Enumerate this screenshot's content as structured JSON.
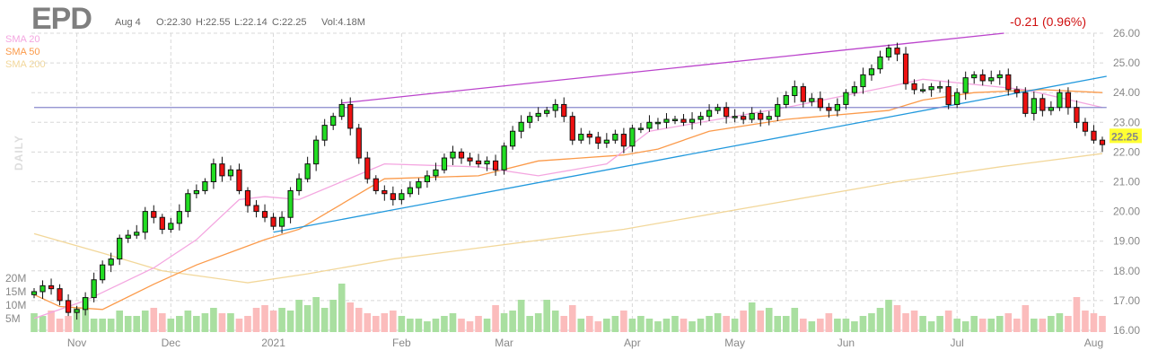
{
  "header": {
    "ticker": "EPD",
    "date": "Aug 4",
    "open": "O:22.30",
    "high": "H:22.55",
    "low": "L:22.14",
    "close": "C:22.25",
    "volume": "Vol:4.18M",
    "change": "-0.21 (0.96%)",
    "period": "DAILY"
  },
  "legend": [
    {
      "label": "SMA 20",
      "color": "#f4a6e0"
    },
    {
      "label": "SMA 50",
      "color": "#fb9a4a"
    },
    {
      "label": "SMA 200",
      "color": "#f2d79a"
    }
  ],
  "colors": {
    "up": "#22dd22",
    "down": "#ee1111",
    "vol_up": "#a9dfa0",
    "vol_down": "#fbbcbc",
    "last_price_bg": "#ffff33",
    "trend_upper": "#bb44cc",
    "trend_lower": "#2299dd",
    "horizontal": "#8888cc"
  },
  "chart_data": {
    "type": "candlestick",
    "title": "EPD",
    "last_price": "22.25",
    "ylim": [
      16,
      26
    ],
    "price_ticks": [
      "26.00",
      "25.00",
      "24.00",
      "23.00",
      "22.00",
      "21.00",
      "20.00",
      "19.00",
      "18.00",
      "17.00",
      "16.00"
    ],
    "volume_ticks": [
      {
        "label": "20M",
        "value": 20
      },
      {
        "label": "15M",
        "value": 15
      },
      {
        "label": "10M",
        "value": 10
      },
      {
        "label": "5M",
        "value": 5
      }
    ],
    "x_labels": [
      {
        "label": "Nov",
        "index": 5
      },
      {
        "label": "Dec",
        "index": 16
      },
      {
        "label": "2021",
        "index": 28
      },
      {
        "label": "Feb",
        "index": 43
      },
      {
        "label": "Mar",
        "index": 55
      },
      {
        "label": "Apr",
        "index": 70
      },
      {
        "label": "May",
        "index": 82
      },
      {
        "label": "Jun",
        "index": 95
      },
      {
        "label": "Jul",
        "index": 108
      },
      {
        "label": "Aug",
        "index": 124
      }
    ],
    "closes": [
      17.3,
      17.5,
      17.4,
      17.0,
      16.6,
      16.7,
      17.1,
      17.7,
      18.2,
      18.4,
      19.1,
      19.2,
      19.3,
      20.0,
      19.8,
      19.4,
      19.6,
      20.0,
      20.6,
      20.7,
      21.0,
      21.6,
      21.2,
      21.4,
      20.7,
      20.2,
      20.0,
      19.8,
      19.5,
      19.8,
      20.7,
      21.1,
      21.6,
      22.4,
      22.9,
      23.2,
      23.6,
      22.8,
      21.8,
      21.1,
      20.7,
      20.6,
      20.4,
      20.6,
      20.8,
      21.0,
      21.2,
      21.4,
      21.8,
      22.0,
      21.8,
      21.7,
      21.6,
      21.7,
      21.4,
      22.2,
      22.7,
      23.0,
      23.2,
      23.3,
      23.4,
      23.6,
      23.2,
      22.4,
      22.6,
      22.5,
      22.3,
      22.4,
      22.6,
      22.2,
      22.8,
      22.8,
      23.0,
      23.0,
      23.1,
      23.1,
      23.0,
      23.1,
      23.2,
      23.4,
      23.5,
      23.2,
      23.2,
      23.1,
      23.3,
      23.1,
      23.2,
      23.6,
      23.9,
      24.2,
      23.7,
      23.8,
      23.5,
      23.4,
      23.6,
      24.0,
      24.2,
      24.6,
      24.8,
      25.2,
      25.5,
      25.3,
      24.3,
      24.1,
      24.1,
      24.2,
      24.2,
      23.6,
      24.0,
      24.5,
      24.6,
      24.4,
      24.5,
      24.6,
      24.1,
      24.0,
      23.3,
      23.8,
      23.4,
      23.5,
      24.0,
      23.5,
      23.0,
      22.7,
      22.4,
      22.25
    ],
    "volumes_m": [
      7,
      6,
      8,
      5,
      6,
      9,
      13,
      5,
      5,
      5,
      8,
      6,
      6,
      8,
      9,
      7,
      5,
      6,
      8,
      6,
      7,
      9,
      7,
      7,
      5,
      6,
      9,
      10,
      8,
      9,
      8,
      12,
      10,
      13,
      9,
      12,
      18,
      11,
      9,
      7,
      6,
      7,
      8,
      6,
      5,
      5,
      4,
      5,
      6,
      7,
      5,
      4,
      6,
      5,
      10,
      7,
      8,
      12,
      6,
      7,
      12,
      8,
      6,
      10,
      5,
      6,
      4,
      5,
      6,
      8,
      5,
      6,
      5,
      4,
      5,
      6,
      5,
      4,
      5,
      6,
      7,
      6,
      5,
      8,
      11,
      8,
      9,
      6,
      6,
      9,
      5,
      4,
      5,
      7,
      5,
      5,
      4,
      6,
      7,
      9,
      12,
      10,
      7,
      8,
      6,
      4,
      6,
      8,
      5,
      4,
      6,
      5,
      5,
      6,
      7,
      5,
      10,
      5,
      5,
      6,
      7,
      6,
      13,
      8,
      7,
      6
    ],
    "sma20": [
      [
        0,
        16.4
      ],
      [
        6,
        17.0
      ],
      [
        14,
        18.1
      ],
      [
        19,
        19.05
      ],
      [
        24,
        20.4
      ],
      [
        27,
        20.5
      ],
      [
        31,
        20.4
      ],
      [
        41,
        21.6
      ],
      [
        52,
        21.5
      ],
      [
        59,
        21.2
      ],
      [
        67,
        21.6
      ],
      [
        72,
        22.7
      ],
      [
        88,
        23.5
      ],
      [
        100,
        24.2
      ],
      [
        104,
        24.45
      ],
      [
        116,
        24.1
      ],
      [
        125,
        23.5
      ]
    ],
    "sma50": [
      [
        0,
        17.2
      ],
      [
        3,
        16.8
      ],
      [
        8,
        16.7
      ],
      [
        14,
        17.55
      ],
      [
        19,
        18.2
      ],
      [
        27,
        19.05
      ],
      [
        31,
        19.4
      ],
      [
        41,
        21.1
      ],
      [
        52,
        21.2
      ],
      [
        59,
        21.7
      ],
      [
        69,
        21.9
      ],
      [
        73,
        22.1
      ],
      [
        79,
        22.7
      ],
      [
        88,
        23.1
      ],
      [
        100,
        23.4
      ],
      [
        104,
        23.75
      ],
      [
        110,
        24.0
      ],
      [
        118,
        24.1
      ],
      [
        125,
        24.0
      ]
    ],
    "sma200": [
      [
        0,
        19.25
      ],
      [
        8,
        18.6
      ],
      [
        15,
        18.0
      ],
      [
        25,
        17.6
      ],
      [
        32,
        17.9
      ],
      [
        42,
        18.4
      ],
      [
        69,
        19.4
      ],
      [
        85,
        20.2
      ],
      [
        101,
        21.0
      ],
      [
        113,
        21.5
      ],
      [
        125,
        21.95
      ]
    ],
    "trendlines": [
      {
        "name": "upper-resistance",
        "from": [
          36,
          23.65
        ],
        "to": [
          113.5,
          26.0
        ]
      },
      {
        "name": "lower-support",
        "from": [
          28,
          19.3
        ],
        "to": [
          125.5,
          24.55
        ]
      },
      {
        "name": "horizontal-level",
        "from": [
          0,
          23.5
        ],
        "to": [
          125.5,
          23.5
        ]
      }
    ]
  }
}
